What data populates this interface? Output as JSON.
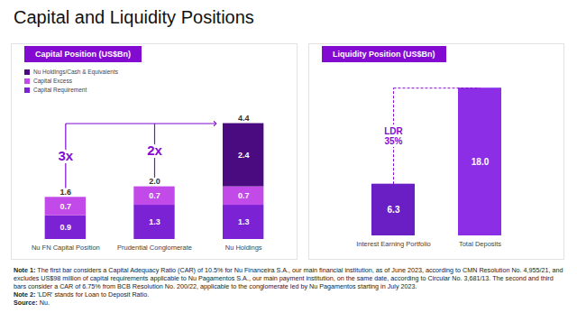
{
  "title": "Capital and Liquidity Positions",
  "chart_data": [
    {
      "type": "bar",
      "title": "Capital Position (US$Bn)",
      "categories": [
        "Nu FN Capital Position",
        "Prudential Conglomerate",
        "Nu Holdings"
      ],
      "series": [
        {
          "name": "Capital Requirement",
          "color": "#7a22d4",
          "values": [
            0.9,
            1.3,
            1.3
          ]
        },
        {
          "name": "Capital Excess",
          "color": "#c14ae8",
          "values": [
            0.7,
            0.7,
            0.7
          ]
        },
        {
          "name": "Nu Holdings/Cash & Equivalents",
          "color": "#4a0b80",
          "values": [
            null,
            null,
            2.4
          ]
        }
      ],
      "stacked": true,
      "data_labels": true,
      "tick_labels": "x",
      "legend": "top-left",
      "ylim": [
        0,
        5
      ],
      "totals": {
        "values": [
          1.6,
          2.0,
          4.4
        ],
        "value_labels": [
          "1.6",
          "2.0",
          "4.4"
        ]
      },
      "annotations": [
        {
          "text": "3x",
          "category": "Nu FN Capital Position"
        },
        {
          "text": "2x",
          "category": "Prudential Conglomerate"
        }
      ]
    },
    {
      "type": "bar",
      "title": "Liquidity Position (US$Bn)",
      "categories": [
        "Interest Earning Portfolio",
        "Total Deposits"
      ],
      "values": [
        6.3,
        18.0
      ],
      "value_labels": [
        "6.3",
        "18.0"
      ],
      "colors": [
        "#6a1fc4",
        "#8b2ee6"
      ],
      "data_labels": true,
      "tick_labels": "x",
      "ylim": [
        0,
        20
      ],
      "annotations": [
        {
          "text": "LDR",
          "value": 35,
          "value_label": "35%"
        }
      ]
    }
  ],
  "notes": [
    {
      "label": "Note 1:",
      "text": "The first bar considers a Capital Adequacy Ratio (CAR) of 10.5% for Nu Financeira S.A., our main financial institution, as of June 2023, according to CMN Resolution No. 4,955/21, and excludes US$98 million of capital requirements applicable to Nu Pagamentos S.A., our main payment institution, on the same date, according to Circular No. 3,681/13. The second and third bars consider a CAR of 6.75% from BCB Resolution No. 200/22, applicable to the conglomerate led by Nu Pagamentos starting in July 2023."
    },
    {
      "label": "Note 2:",
      "text": "'LDR' stands for Loan to Deposit Ratio."
    }
  ],
  "source": {
    "label": "Source:",
    "text": "Nu."
  }
}
